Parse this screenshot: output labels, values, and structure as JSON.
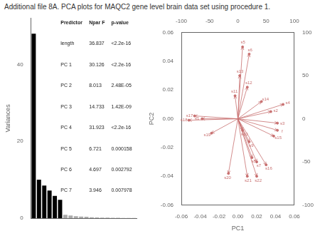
{
  "chart_data": [
    {
      "type": "bar",
      "title": "Additional file 8A. PCA plots for MAQC2 gene level brain data set using procedure 1.",
      "categories": [
        null,
        null,
        null,
        null,
        null,
        null,
        null,
        null,
        null,
        null,
        null,
        null,
        null,
        null,
        null,
        null,
        null,
        null,
        null,
        null
      ],
      "values": [
        48,
        10,
        8.5,
        7.2,
        5.8,
        4.8,
        0.9,
        0.7,
        0.5,
        0.4,
        0.35,
        0.25,
        0.2,
        0.15,
        0.12,
        0.1,
        0.08,
        0.06,
        0.05,
        0.04
      ],
      "colors": [
        "black",
        "black",
        "black",
        "black",
        "black",
        "black",
        "#aaaaaa",
        "#aaaaaa",
        "#aaaaaa",
        "#aaaaaa",
        "#aaaaaa",
        "#aaaaaa",
        "#aaaaaa",
        "#aaaaaa",
        "#aaaaaa",
        "#aaaaaa",
        "#aaaaaa",
        "#aaaaaa",
        "#aaaaaa",
        "#aaaaaa"
      ],
      "ylabel": "Variances",
      "ylim": [
        0,
        52
      ],
      "yticks": [
        0,
        20,
        40
      ],
      "grid": false,
      "tick_labels": "y",
      "table": {
        "headers": [
          "Predictor",
          "Npar F",
          "p-value"
        ],
        "rows": [
          [
            "length",
            "36.837",
            "<2.2e-16"
          ],
          [
            "PC 1",
            "30.126",
            "<2.2e-16"
          ],
          [
            "PC 2",
            "8.013",
            "2.48E-05"
          ],
          [
            "PC 3",
            "14.733",
            "1.42E-09"
          ],
          [
            "PC 4",
            "31.923",
            "<2.2e-16"
          ],
          [
            "PC 5",
            "6.721",
            "0.000158"
          ],
          [
            "PC 6",
            "4.697",
            "0.002792"
          ],
          [
            "PC 7",
            "3.946",
            "0.007978"
          ]
        ]
      }
    },
    {
      "type": "biplot",
      "x": [
        0.048,
        0.042,
        0.042,
        0.035,
        0.025,
        0.012,
        0.005,
        0.002,
        0.01,
        -0.003,
        0.005,
        0.012,
        0.015,
        0.02,
        0.03,
        0.038,
        -0.038,
        -0.046,
        -0.052,
        -0.028,
        -0.01,
        0.01,
        0.02
      ],
      "values": [
        0.01,
        -0.003,
        -0.008,
        0.005,
        0.012,
        0.045,
        0.05,
        0.03,
        0.022,
        0.016,
        -0.008,
        -0.016,
        -0.027,
        -0.03,
        -0.032,
        -0.012,
        0.0,
        0.002,
        -0.001,
        -0.01,
        -0.038,
        -0.04,
        -0.04
      ],
      "labels": [
        "s4",
        "s3",
        "f",
        "s2",
        "s14",
        "s6",
        "s5",
        "s13",
        "s12",
        "s11",
        "s10",
        "s9",
        "s8",
        "s7",
        "s16",
        "s15",
        "s1",
        "s17",
        "s18",
        "s19",
        "s20",
        "s21",
        "s22"
      ],
      "color": "#c87070",
      "xlabel": "PC1",
      "ylabel": "PC2",
      "xlim": [
        -0.06,
        0.06
      ],
      "ylim": [
        -0.06,
        0.06
      ],
      "xticks": [
        -0.06,
        -0.04,
        -0.02,
        {
          "value": 0.0,
          "label": "0.00"
        },
        0.02,
        0.04,
        0.06
      ],
      "yticks": [
        -0.06,
        -0.04,
        -0.02,
        {
          "value": 0.0,
          "label": "0.00"
        },
        0.02,
        0.04,
        0.06
      ],
      "x2lim": [
        -100,
        100
      ],
      "x2ticks": [
        -100,
        -50,
        0,
        50,
        100
      ],
      "y2lim": [
        -100,
        100
      ],
      "y2ticks": [
        -100,
        -50,
        0,
        50,
        100
      ],
      "grid": false
    }
  ]
}
